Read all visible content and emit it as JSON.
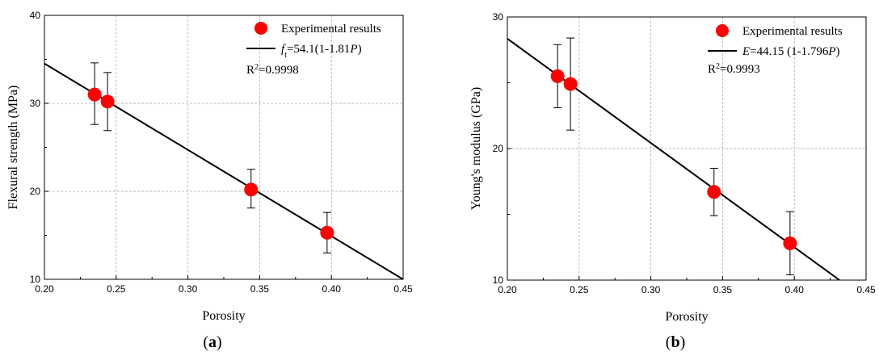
{
  "chart_data": [
    {
      "type": "scatter",
      "panel_label": "(a)",
      "xlabel": "Porosity",
      "ylabel": "Flexural strength (MPa)",
      "xlim": [
        0.2,
        0.45
      ],
      "ylim": [
        10,
        40
      ],
      "xticks": [
        "0.20",
        "0.25",
        "0.30",
        "0.35",
        "0.40",
        "0.45"
      ],
      "yticks": [
        "10",
        "20",
        "30",
        "40"
      ],
      "grid": true,
      "legend_position": "top-right",
      "series": [
        {
          "name": "Experimental results",
          "kind": "points",
          "color": "#ff0000",
          "points": [
            {
              "x": 0.235,
              "y": 31.0,
              "err_low": 27.6,
              "err_high": 34.6
            },
            {
              "x": 0.244,
              "y": 30.2,
              "err_low": 26.9,
              "err_high": 33.5
            },
            {
              "x": 0.344,
              "y": 20.2,
              "err_low": 18.1,
              "err_high": 22.5
            },
            {
              "x": 0.397,
              "y": 15.3,
              "err_low": 13.0,
              "err_high": 17.6
            }
          ]
        },
        {
          "name_parts": [
            "f",
            "t",
            "=54.1(1-1.81",
            "P",
            ")"
          ],
          "kind": "fit",
          "color": "#000000",
          "x": [
            0.2,
            0.45
          ],
          "y": [
            34.52,
            10.0
          ]
        }
      ],
      "r2_parts": [
        "R",
        "2",
        "=0.9998"
      ]
    },
    {
      "type": "scatter",
      "panel_label": "(b)",
      "xlabel": "Porosity",
      "ylabel": "Young's modulus (GPa)",
      "xlim": [
        0.2,
        0.45
      ],
      "ylim": [
        10,
        30
      ],
      "xticks": [
        "0.20",
        "0.25",
        "0.30",
        "0.35",
        "0.40",
        "0.45"
      ],
      "yticks": [
        "10",
        "20",
        "30"
      ],
      "grid": true,
      "legend_position": "top-right",
      "series": [
        {
          "name": "Experimental results",
          "kind": "points",
          "color": "#ff0000",
          "points": [
            {
              "x": 0.235,
              "y": 25.5,
              "err_low": 23.1,
              "err_high": 27.9
            },
            {
              "x": 0.244,
              "y": 24.9,
              "err_low": 21.4,
              "err_high": 28.4
            },
            {
              "x": 0.344,
              "y": 16.7,
              "err_low": 14.9,
              "err_high": 18.5
            },
            {
              "x": 0.397,
              "y": 12.8,
              "err_low": 10.4,
              "err_high": 15.2
            }
          ]
        },
        {
          "name_parts": [
            "E",
            "=44.15 (1-1.796",
            "P",
            ")"
          ],
          "kind": "fit",
          "color": "#000000",
          "x": [
            0.2,
            0.4315
          ],
          "y": [
            28.35,
            10.0
          ]
        }
      ],
      "r2_parts": [
        "R",
        "2",
        "=0.9993"
      ]
    }
  ]
}
